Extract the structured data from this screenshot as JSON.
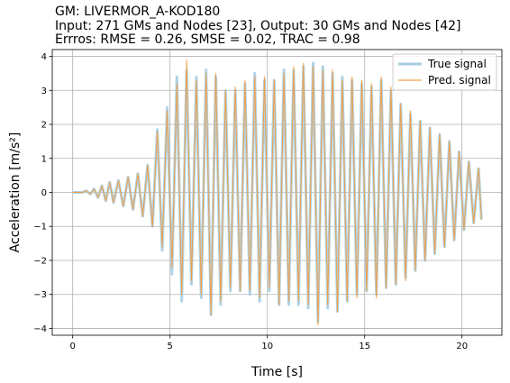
{
  "chart_data": {
    "type": "line",
    "title_lines": [
      "GM: LIVERMOR_A-KOD180",
      "Input: 271 GMs and Nodes [23], Output: 30 GMs and Nodes [42]",
      "Errros: RMSE = 0.26, SMSE = 0.02, TRAC = 0.98"
    ],
    "xlabel": "Time [s]",
    "ylabel": "Acceleration [m/s²]",
    "xlim": [
      -1.05,
      22.05
    ],
    "ylim": [
      -4.2,
      4.2
    ],
    "xticks": [
      0,
      5,
      10,
      15,
      20
    ],
    "yticks": [
      -4,
      -3,
      -2,
      -1,
      0,
      1,
      2,
      3,
      4
    ],
    "grid": true,
    "legend_position": "top-right",
    "series": [
      {
        "name": "True signal",
        "color": "#a6cee3",
        "x": [
          0,
          0.5,
          0.7,
          0.9,
          1.1,
          1.3,
          1.5,
          1.7,
          1.9,
          2.1,
          2.35,
          2.6,
          2.85,
          3.1,
          3.35,
          3.6,
          3.85,
          4.1,
          4.35,
          4.6,
          4.85,
          5.1,
          5.35,
          5.6,
          5.85,
          6.1,
          6.35,
          6.6,
          6.85,
          7.1,
          7.35,
          7.6,
          7.85,
          8.1,
          8.35,
          8.6,
          8.85,
          9.1,
          9.35,
          9.6,
          9.85,
          10.1,
          10.35,
          10.6,
          10.85,
          11.1,
          11.35,
          11.6,
          11.85,
          12.1,
          12.35,
          12.6,
          12.85,
          13.1,
          13.35,
          13.6,
          13.85,
          14.1,
          14.35,
          14.6,
          14.85,
          15.1,
          15.35,
          15.6,
          15.85,
          16.1,
          16.35,
          16.6,
          16.85,
          17.1,
          17.35,
          17.6,
          17.85,
          18.1,
          18.35,
          18.6,
          18.85,
          19.1,
          19.35,
          19.6,
          19.85,
          20.1,
          20.35,
          20.6,
          20.85,
          21.0
        ],
        "y": [
          0,
          0,
          0.05,
          -0.05,
          0.1,
          -0.15,
          0.2,
          -0.25,
          0.3,
          -0.3,
          0.35,
          -0.4,
          0.45,
          -0.5,
          0.55,
          -0.7,
          0.8,
          -1.0,
          1.85,
          -1.7,
          2.5,
          -2.4,
          3.4,
          -3.2,
          3.6,
          -2.7,
          3.4,
          -3.1,
          3.6,
          -3.6,
          3.4,
          -3.3,
          3.0,
          -2.9,
          3.0,
          -2.9,
          3.2,
          -3.0,
          3.5,
          -3.2,
          3.3,
          -2.9,
          3.3,
          -3.3,
          3.6,
          -3.3,
          3.6,
          -3.3,
          3.7,
          -3.4,
          3.8,
          -3.8,
          3.7,
          -3.4,
          3.5,
          -3.5,
          3.4,
          -3.2,
          3.3,
          -3.0,
          3.2,
          -2.9,
          3.1,
          -3.0,
          3.3,
          -2.8,
          3.0,
          -2.7,
          2.6,
          -2.5,
          2.3,
          -2.3,
          2.1,
          -2.0,
          1.9,
          -1.8,
          1.7,
          -1.6,
          1.5,
          -1.4,
          1.2,
          -1.1,
          0.9,
          -0.9,
          0.7,
          -0.8
        ]
      },
      {
        "name": "Pred. signal",
        "color": "#f0a04b",
        "x": [
          0,
          0.5,
          0.7,
          0.9,
          1.1,
          1.3,
          1.5,
          1.7,
          1.9,
          2.1,
          2.35,
          2.6,
          2.85,
          3.1,
          3.35,
          3.6,
          3.85,
          4.1,
          4.35,
          4.6,
          4.85,
          5.1,
          5.35,
          5.6,
          5.85,
          6.1,
          6.35,
          6.6,
          6.85,
          7.1,
          7.35,
          7.6,
          7.85,
          8.1,
          8.35,
          8.6,
          8.85,
          9.1,
          9.35,
          9.6,
          9.85,
          10.1,
          10.35,
          10.6,
          10.85,
          11.1,
          11.35,
          11.6,
          11.85,
          12.1,
          12.35,
          12.6,
          12.85,
          13.1,
          13.35,
          13.6,
          13.85,
          14.1,
          14.35,
          14.6,
          14.85,
          15.1,
          15.35,
          15.6,
          15.85,
          16.1,
          16.35,
          16.6,
          16.85,
          17.1,
          17.35,
          17.6,
          17.85,
          18.1,
          18.35,
          18.6,
          18.85,
          19.1,
          19.35,
          19.6,
          19.85,
          20.1,
          20.35,
          20.6,
          20.85,
          21.0
        ],
        "y": [
          0,
          0,
          0.05,
          -0.05,
          0.1,
          -0.15,
          0.2,
          -0.25,
          0.3,
          -0.3,
          0.35,
          -0.4,
          0.45,
          -0.5,
          0.55,
          -0.7,
          0.8,
          -1.0,
          1.8,
          -1.6,
          2.4,
          -2.2,
          3.2,
          -3.0,
          3.9,
          -2.6,
          3.3,
          -3.0,
          3.5,
          -3.6,
          3.5,
          -3.2,
          3.0,
          -2.8,
          3.1,
          -2.9,
          3.3,
          -2.9,
          3.4,
          -3.1,
          3.4,
          -2.8,
          3.3,
          -3.3,
          3.5,
          -3.2,
          3.7,
          -3.2,
          3.8,
          -3.3,
          3.7,
          -3.9,
          3.6,
          -3.3,
          3.6,
          -3.5,
          3.3,
          -3.2,
          3.4,
          -3.1,
          3.3,
          -2.9,
          3.2,
          -3.1,
          3.4,
          -2.8,
          3.1,
          -2.7,
          2.6,
          -2.6,
          2.4,
          -2.3,
          2.1,
          -2.0,
          1.9,
          -1.8,
          1.7,
          -1.6,
          1.5,
          -1.4,
          1.2,
          -1.1,
          0.9,
          -0.9,
          0.7,
          -0.8
        ]
      }
    ]
  }
}
